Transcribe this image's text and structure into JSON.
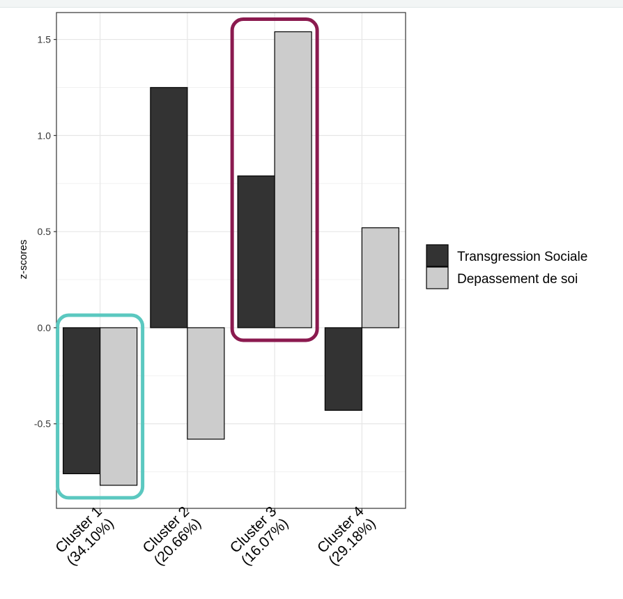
{
  "chart_data": {
    "type": "bar",
    "ylabel": "z-scores",
    "xlabel": "",
    "ylim": [
      -0.94,
      1.64
    ],
    "yticks": [
      -0.5,
      0.0,
      0.5,
      1.0,
      1.5
    ],
    "ytick_labels": [
      "-0.5",
      "0.0",
      "0.5",
      "1.0",
      "1.5"
    ],
    "grid": true,
    "legend_position": "right",
    "categories": [
      "Cluster 1\n(34.10%)",
      "Cluster 2\n(20.66%)",
      "Cluster 3\n(16.07%)",
      "Cluster 4\n(29.18%)"
    ],
    "category_lines": [
      [
        "Cluster 1",
        "(34.10%)"
      ],
      [
        "Cluster 2",
        "(20.66%)"
      ],
      [
        "Cluster 3",
        "(16.07%)"
      ],
      [
        "Cluster 4",
        "(29.18%)"
      ]
    ],
    "series": [
      {
        "name": "Transgression Sociale",
        "color": "#333333",
        "values": [
          -0.76,
          1.25,
          0.79,
          -0.43
        ]
      },
      {
        "name": "Depassement de soi",
        "color": "#cccccc",
        "values": [
          -0.82,
          -0.58,
          1.54,
          0.52
        ]
      }
    ],
    "highlights": [
      {
        "category_index": 0,
        "color": "#5bc8c0"
      },
      {
        "category_index": 2,
        "color": "#8b1a4f"
      }
    ]
  }
}
